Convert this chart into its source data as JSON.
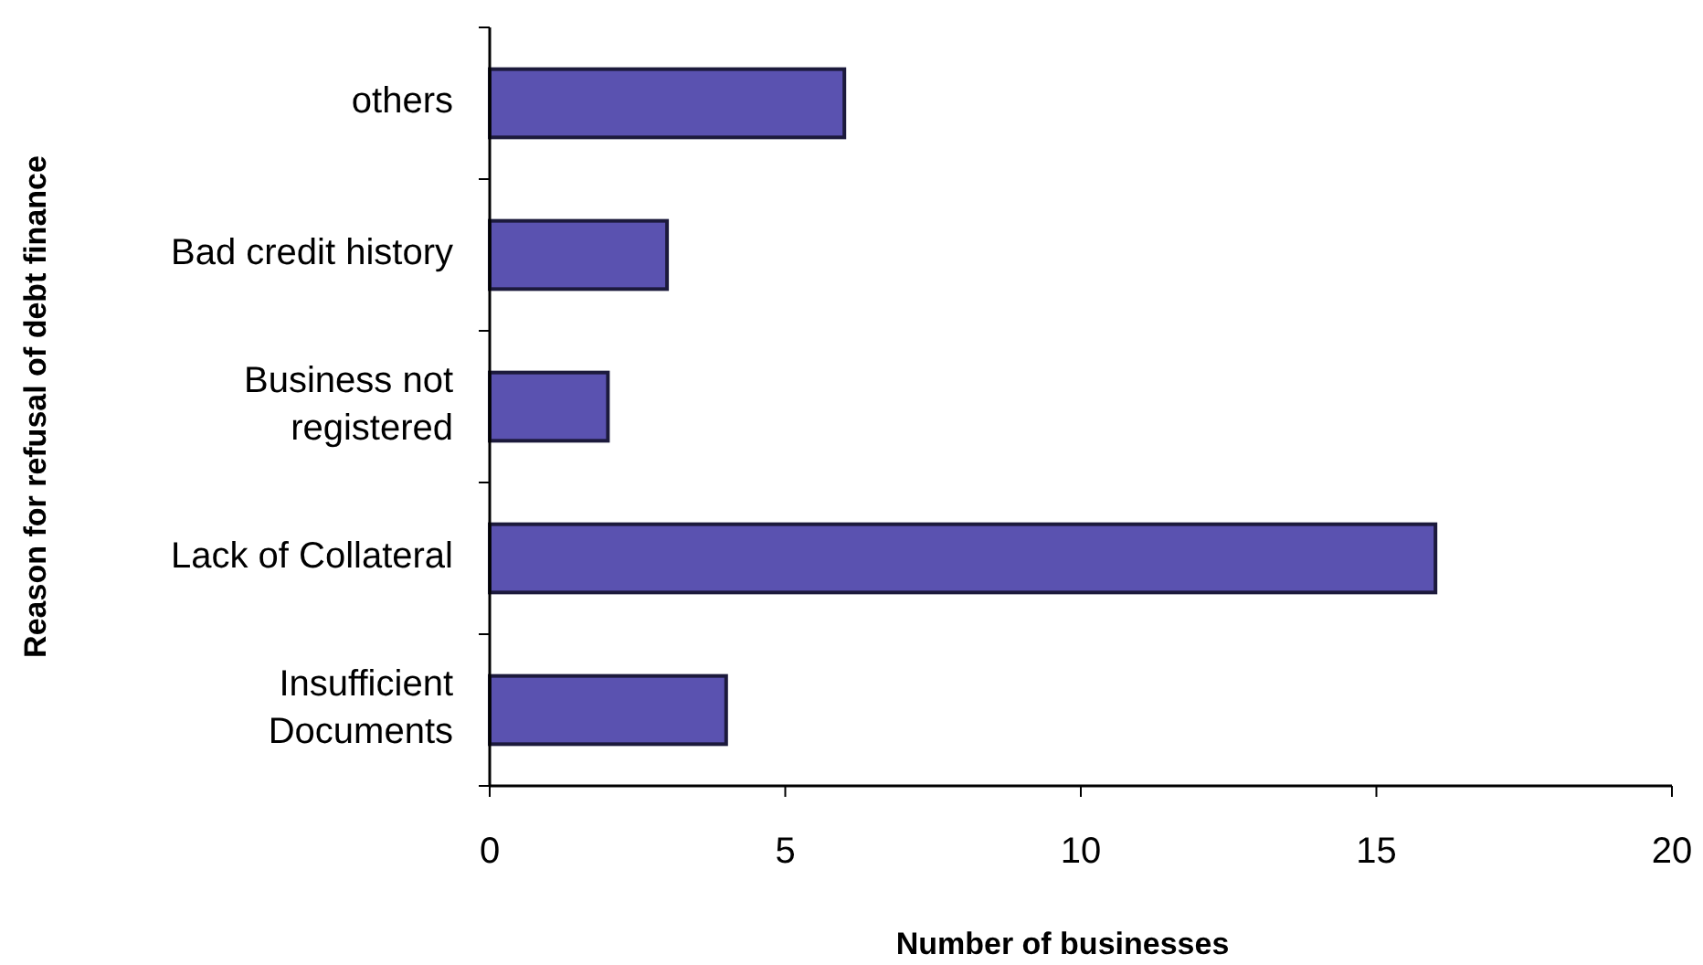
{
  "chart_data": {
    "type": "bar",
    "orientation": "horizontal",
    "xlabel": "Number of businesses",
    "ylabel": "Reason for refusal of debt finance",
    "categories": [
      "others",
      "Bad credit history",
      "Business not registered",
      "Lack of Collateral",
      "Insufficient Documents"
    ],
    "values": [
      6,
      3,
      2,
      16,
      4
    ],
    "color": "#5a52b0",
    "xlim": [
      0,
      20
    ],
    "xticks": [
      0,
      5,
      10,
      15,
      20
    ],
    "grid": false
  }
}
